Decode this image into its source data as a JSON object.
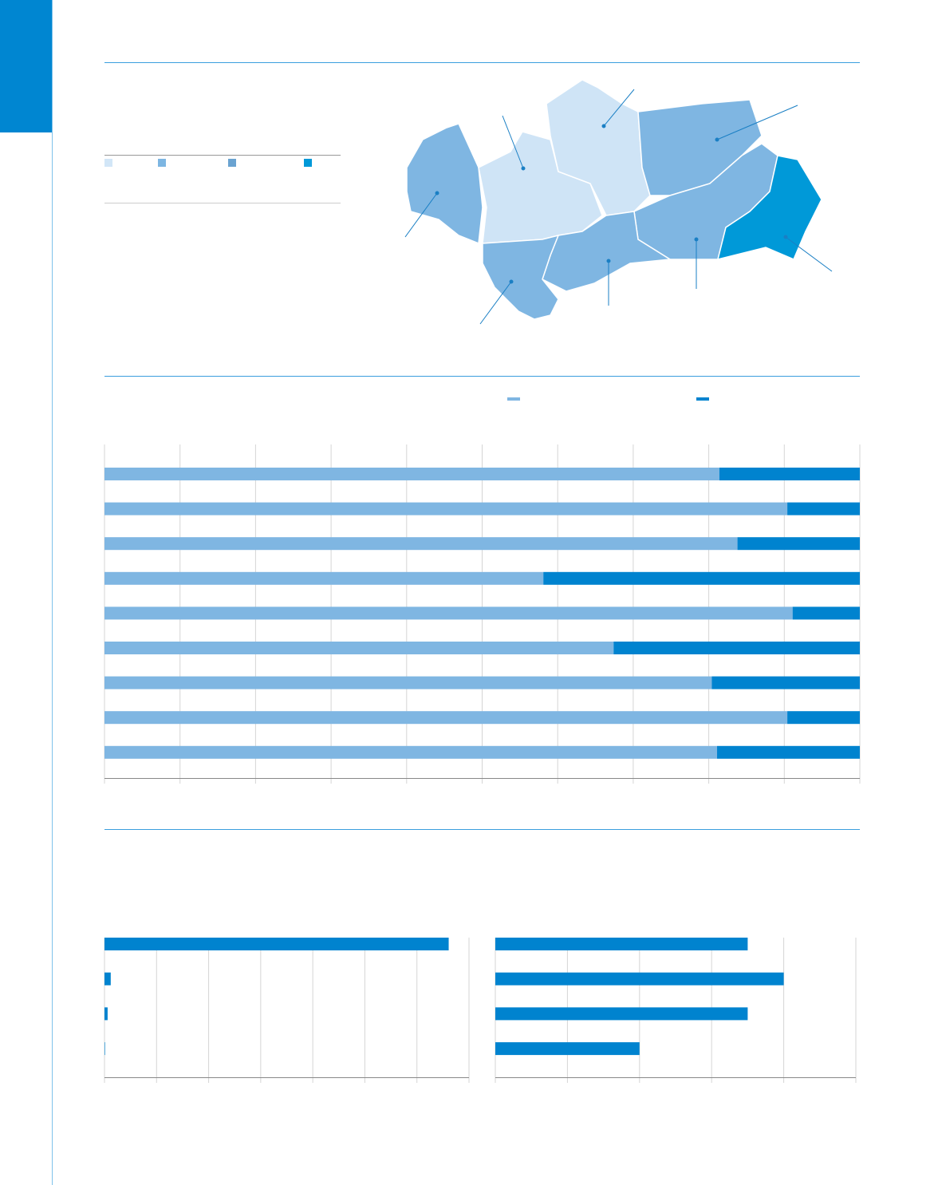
{
  "chart_data": [
    {
      "type": "bar",
      "orientation": "horizontal",
      "stacked": true,
      "categories": [
        null,
        null,
        null,
        null,
        null,
        null,
        null,
        null,
        null
      ],
      "series": [
        {
          "color": "#7fb6e2",
          "values": [
            81.4,
            90.4,
            83.8,
            58.1,
            91.1,
            67.4,
            80.4,
            90.4,
            81.1
          ]
        },
        {
          "color": "#0083cf",
          "values": [
            18.6,
            9.6,
            16.2,
            41.9,
            8.9,
            32.6,
            19.6,
            9.6,
            18.9
          ]
        }
      ],
      "xlim": [
        0,
        100
      ],
      "xticks": [
        0,
        10,
        20,
        30,
        40,
        50,
        60,
        70,
        80,
        90,
        100
      ],
      "grid": true
    },
    {
      "type": "bar",
      "orientation": "horizontal",
      "categories": [
        null,
        null,
        null,
        null
      ],
      "values": [
        661,
        12,
        6,
        1
      ],
      "color": "#0083cf",
      "xlim": [
        0,
        700
      ],
      "xticks": [
        0,
        100,
        200,
        300,
        400,
        500,
        600,
        700
      ],
      "grid": true
    },
    {
      "type": "bar",
      "orientation": "horizontal",
      "categories": [
        null,
        null,
        null,
        null
      ],
      "values": [
        35,
        40,
        35,
        20
      ],
      "color": "#0083cf",
      "xlim": [
        0,
        50
      ],
      "xticks": [
        0,
        10,
        20,
        30,
        40,
        50
      ],
      "grid": true
    }
  ]
}
